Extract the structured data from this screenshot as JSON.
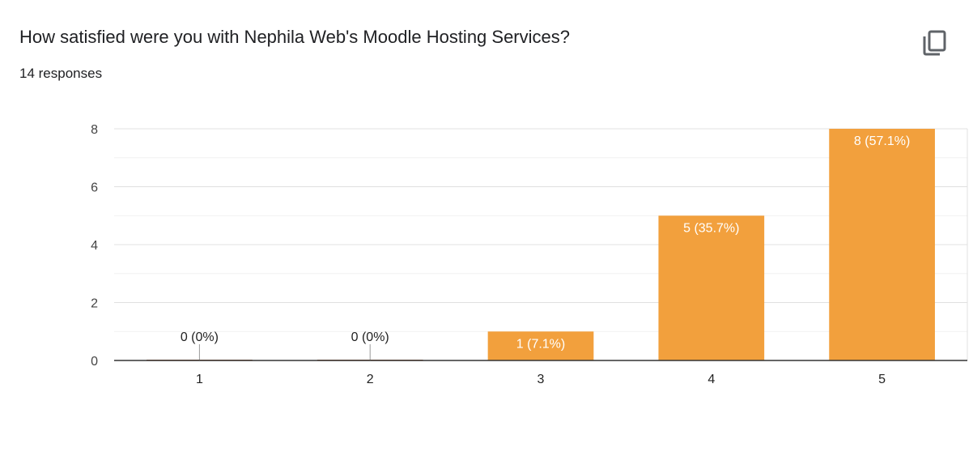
{
  "header": {
    "title": "How satisfied were you with Nephila Web's Moodle Hosting Services?",
    "responses": "14 responses",
    "copy_icon": "copy-icon"
  },
  "colors": {
    "bar": "#f2a03d",
    "grid_major": "#e0e0e0",
    "grid_minor": "#f1f1f1",
    "axis": "#333333"
  },
  "chart_data": {
    "type": "bar",
    "categories": [
      "1",
      "2",
      "3",
      "4",
      "5"
    ],
    "values": [
      0,
      0,
      1,
      5,
      8
    ],
    "data_labels": [
      "0 (0%)",
      "0 (0%)",
      "1 (7.1%)",
      "5 (35.7%)",
      "8 (57.1%)"
    ],
    "title": "How satisfied were you with Nephila Web's Moodle Hosting Services?",
    "xlabel": "",
    "ylabel": "",
    "ylim": [
      0,
      8
    ],
    "yticks": [
      "0",
      "2",
      "4",
      "6",
      "8"
    ],
    "grid": true,
    "legend": "none"
  }
}
